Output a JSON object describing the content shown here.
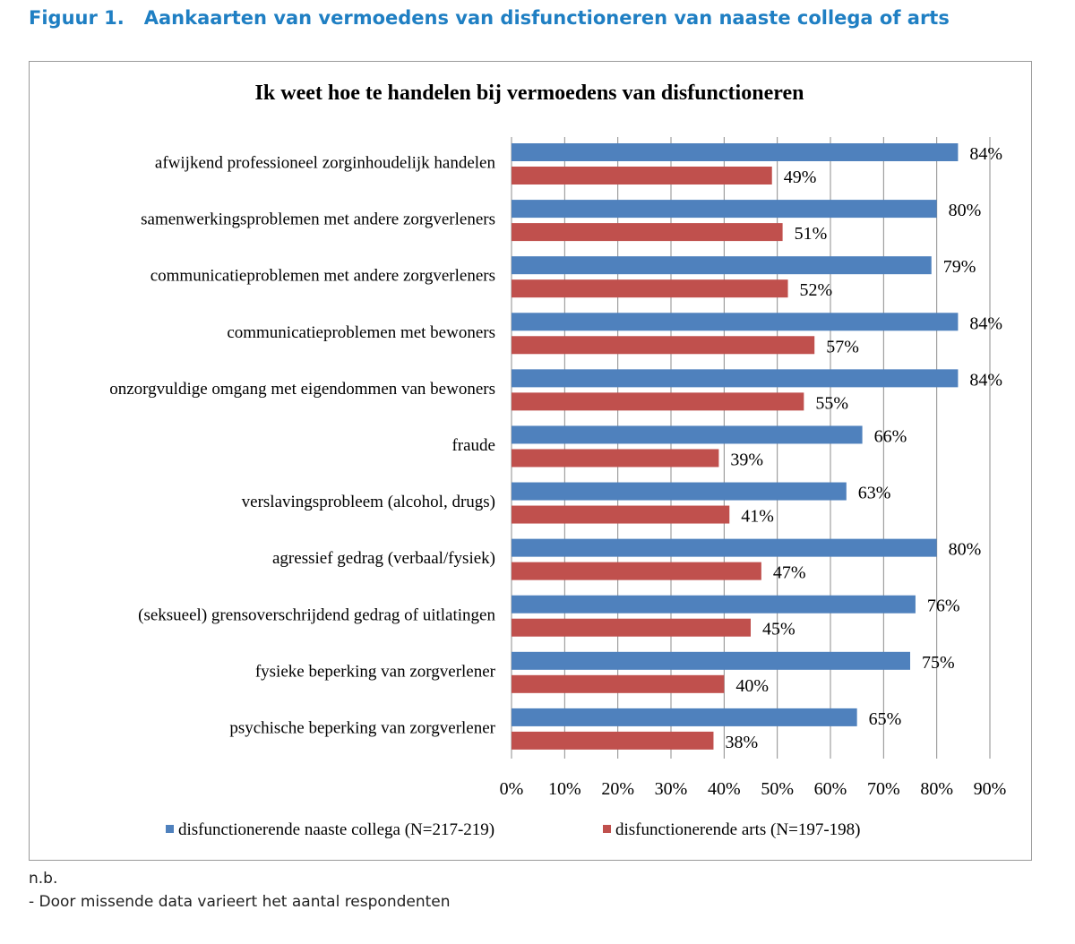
{
  "caption": {
    "number": "Figuur 1.",
    "title": "Aankaarten van vermoedens van disfunctioneren van naaste collega of arts"
  },
  "chart_data": {
    "type": "bar",
    "orientation": "horizontal",
    "title": "Ik weet hoe te handelen bij vermoedens van disfunctioneren",
    "categories": [
      "afwijkend professioneel zorginhoudelijk handelen",
      "samenwerkingsproblemen met andere zorgverleners",
      "communicatieproblemen met andere zorgverleners",
      "communicatieproblemen met bewoners",
      "onzorgvuldige omgang met eigendommen van bewoners",
      "fraude",
      "verslavingsprobleem (alcohol, drugs)",
      "agressief gedrag (verbaal/fysiek)",
      "(seksueel) grensoverschrijdend gedrag of uitlatingen",
      "fysieke beperking van zorgverlener",
      "psychische beperking van zorgverlener"
    ],
    "series": [
      {
        "name": "disfunctionerende naaste collega (N=217-219)",
        "color": "#4f81bd",
        "values": [
          84,
          80,
          79,
          84,
          84,
          66,
          63,
          80,
          76,
          75,
          65
        ]
      },
      {
        "name": "disfunctionerende arts (N=197-198)",
        "color": "#c0504d",
        "values": [
          49,
          51,
          52,
          57,
          55,
          39,
          41,
          47,
          45,
          40,
          38
        ]
      }
    ],
    "value_suffix": "%",
    "xlim": [
      0,
      90
    ],
    "xticks": [
      0,
      10,
      20,
      30,
      40,
      50,
      60,
      70,
      80,
      90
    ],
    "xtick_labels": [
      "0%",
      "10%",
      "20%",
      "30%",
      "40%",
      "50%",
      "60%",
      "70%",
      "80%",
      "90%"
    ],
    "grid": true,
    "legend_position": "bottom"
  },
  "notes": {
    "line1": "n.b.",
    "line2": "- Door missende data varieert het aantal respondenten"
  }
}
